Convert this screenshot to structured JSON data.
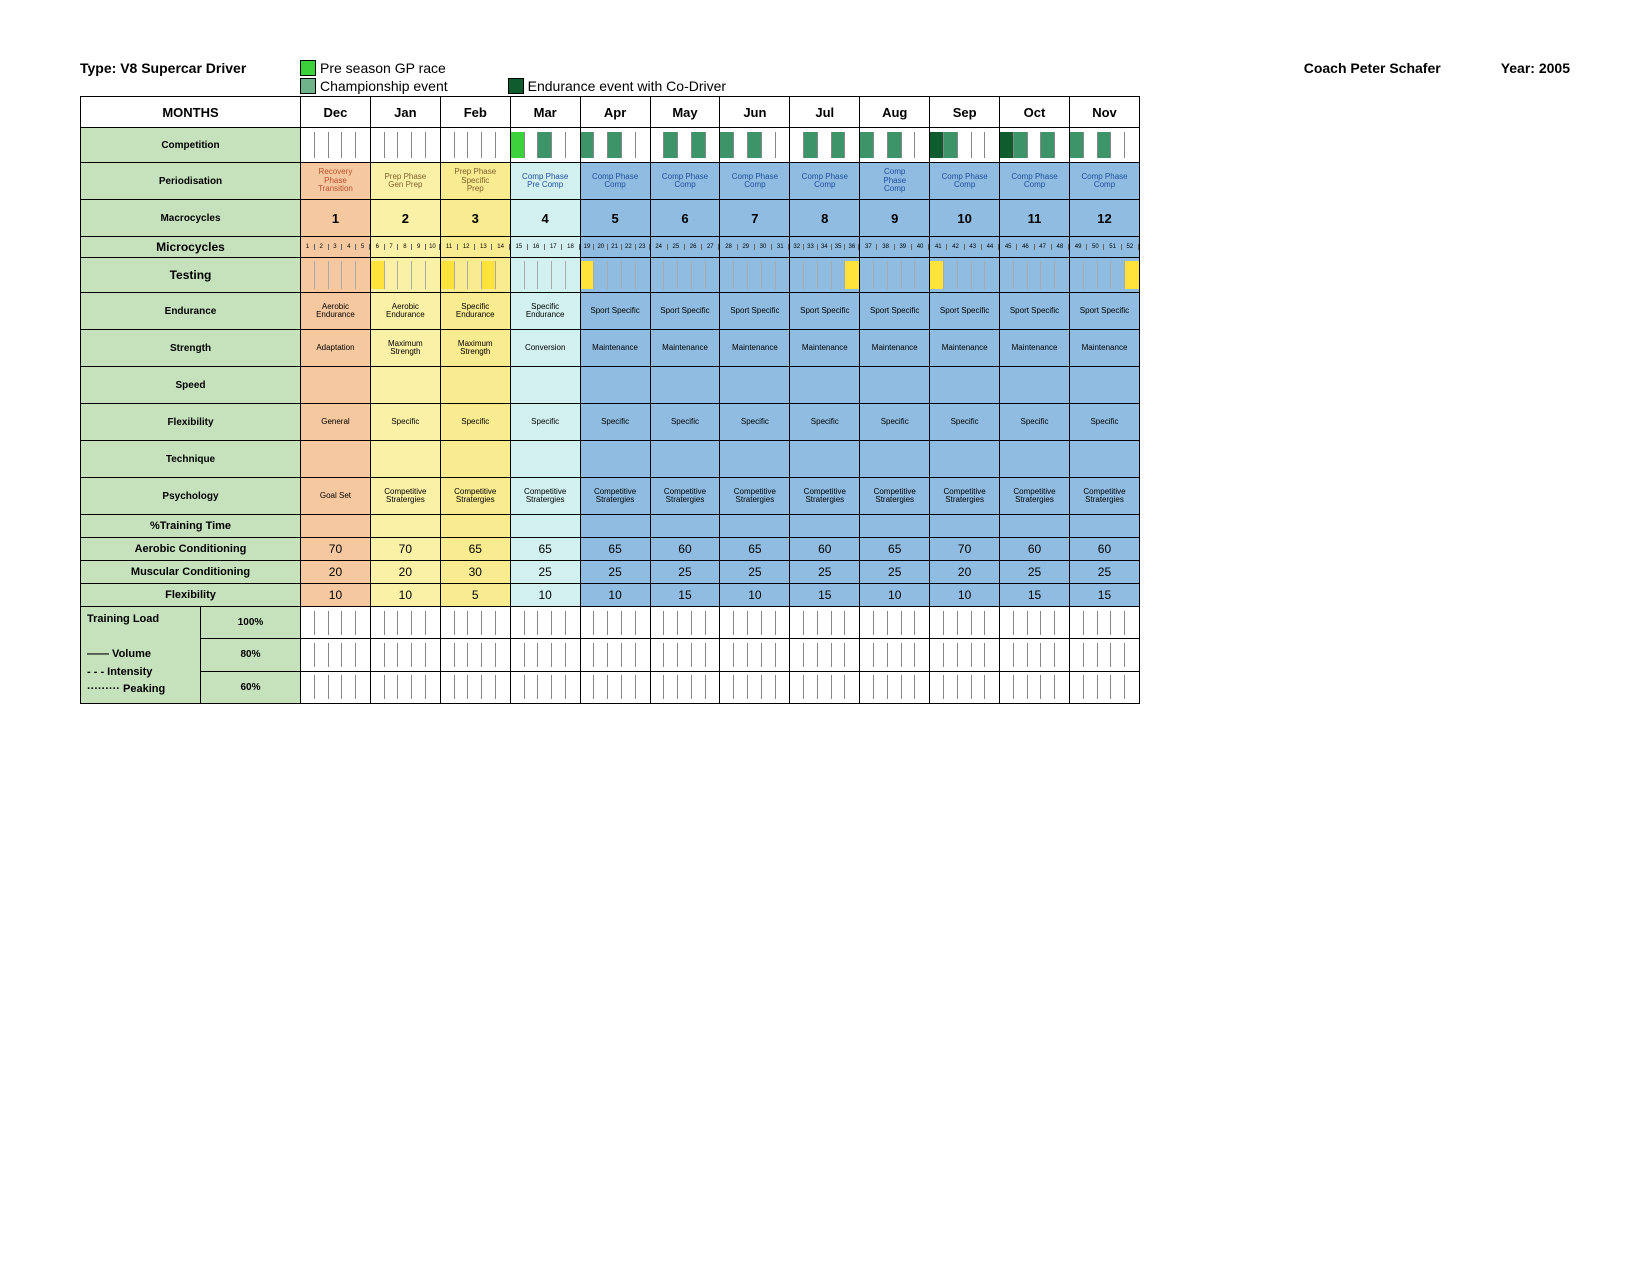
{
  "header": {
    "type_label": "Type:",
    "type_value": "V8 Supercar Driver",
    "coach_label": "Coach",
    "coach_value": "Peter Schafer",
    "year_label": "Year:",
    "year_value": "2005",
    "legend1": {
      "color": "#3bd23b",
      "label": "Pre season GP race"
    },
    "legend2": {
      "color": "#6fb38a",
      "label": "Championship event"
    },
    "legend3": {
      "color": "#0f5d2f",
      "label": "Endurance event with Co-Driver"
    }
  },
  "colors": {
    "label_bg": "#c6e2bd",
    "orange": "#f5c89f",
    "yellow1": "#fbf1a6",
    "yellow2": "#f9eb8f",
    "cyan": "#d1f0ef",
    "blue": "#8fbce0",
    "test_highlight": "#ffe33b",
    "green_event": "#3bd23b",
    "champ_event": "#3d9468",
    "endur_event": "#0f5d2f",
    "white": "#ffffff"
  },
  "row_labels": {
    "months": "MONTHS",
    "competition": "Competition",
    "periodisation": "Periodisation",
    "macro": "Macrocycles",
    "micro": "Microcycles",
    "testing": "Testing",
    "endurance": "Endurance",
    "strength": "Strength",
    "speed": "Speed",
    "flexibility": "Flexibility",
    "technique": "Technique",
    "psychology": "Psychology",
    "pct_time": "%Training Time",
    "aerobic_cond": "Aerobic Conditioning",
    "muscular_cond": "Muscular Conditioning",
    "flex2": "Flexibility",
    "load": "Training Load",
    "volume": "—— Volume",
    "intensity": "- - - Intensity",
    "peaking": "········· Peaking",
    "p100": "100%",
    "p80": "80%",
    "p60": "60%"
  },
  "months": [
    "Dec",
    "Jan",
    "Feb",
    "Mar",
    "Apr",
    "May",
    "Jun",
    "Jul",
    "Aug",
    "Sep",
    "Oct",
    "Nov"
  ],
  "month_blocks": [
    {
      "bg": "orange",
      "period_l1": "Recovery",
      "period_l2": "Phase",
      "period_l3": "Transition",
      "macro": "1",
      "end": "Aerobic Endurance",
      "str": "Adaptation",
      "flex": "General",
      "psy": "Goal Set"
    },
    {
      "bg": "yellow1",
      "period_l1": "Prep Phase",
      "period_l2": "Gen  Prep",
      "period_l3": "",
      "macro": "2",
      "end": "Aerobic Endurance",
      "str": "Maximum Strength",
      "flex": "Specific",
      "psy": "Competitive Stratergies"
    },
    {
      "bg": "yellow2",
      "period_l1": "Prep Phase",
      "period_l2": "Specific",
      "period_l3": "Prep",
      "macro": "3",
      "end": "Specific Endurance",
      "str": "Maximum Strength",
      "flex": "Specific",
      "psy": "Competitive Stratergies"
    },
    {
      "bg": "cyan",
      "period_l1": "Comp Phase",
      "period_l2": "Pre Comp",
      "period_l3": "",
      "macro": "4",
      "end": "Specific Endurance",
      "str": "Conversion",
      "flex": "Specific",
      "psy": "Competitive Stratergies"
    },
    {
      "bg": "blue",
      "period_l1": "Comp Phase",
      "period_l2": "Comp",
      "period_l3": "",
      "macro": "5",
      "end": "Sport Specific",
      "str": "Maintenance",
      "flex": "Specific",
      "psy": "Competitive Stratergies"
    },
    {
      "bg": "blue",
      "period_l1": "Comp Phase",
      "period_l2": "Comp",
      "period_l3": "",
      "macro": "6",
      "end": "Sport Specific",
      "str": "Maintenance",
      "flex": "Specific",
      "psy": "Competitive Stratergies"
    },
    {
      "bg": "blue",
      "period_l1": "Comp Phase",
      "period_l2": "Comp",
      "period_l3": "",
      "macro": "7",
      "end": "Sport Specific",
      "str": "Maintenance",
      "flex": "Specific",
      "psy": "Competitive Stratergies"
    },
    {
      "bg": "blue",
      "period_l1": "Comp Phase",
      "period_l2": "Comp",
      "period_l3": "",
      "macro": "8",
      "end": "Sport Specific",
      "str": "Maintenance",
      "flex": "Specific",
      "psy": "Competitive Stratergies"
    },
    {
      "bg": "blue",
      "period_l1": "Comp",
      "period_l2": "Phase",
      "period_l3": "Comp",
      "macro": "9",
      "end": "Sport Specific",
      "str": "Maintenance",
      "flex": "Specific",
      "psy": "Competitive Stratergies"
    },
    {
      "bg": "blue",
      "period_l1": "Comp Phase",
      "period_l2": "Comp",
      "period_l3": "",
      "macro": "10",
      "end": "Sport Specific",
      "str": "Maintenance",
      "flex": "Specific",
      "psy": "Competitive Stratergies"
    },
    {
      "bg": "blue",
      "period_l1": "Comp Phase",
      "period_l2": "Comp",
      "period_l3": "",
      "macro": "11",
      "end": "Sport Specific",
      "str": "Maintenance",
      "flex": "Specific",
      "psy": "Competitive Stratergies"
    },
    {
      "bg": "blue",
      "period_l1": "Comp Phase",
      "period_l2": "Comp",
      "period_l3": "",
      "macro": "12",
      "end": "Sport Specific",
      "str": "Maintenance",
      "flex": "Specific",
      "psy": "Competitive Stratergies"
    }
  ],
  "competition_events": [
    [],
    [],
    [],
    [
      {
        "slot": 0,
        "type": "green"
      },
      {
        "slot": 2,
        "type": "champ"
      }
    ],
    [
      {
        "slot": 0,
        "type": "champ"
      },
      {
        "slot": 2,
        "type": "champ"
      }
    ],
    [
      {
        "slot": 1,
        "type": "champ"
      },
      {
        "slot": 3,
        "type": "champ"
      }
    ],
    [
      {
        "slot": 0,
        "type": "champ"
      },
      {
        "slot": 2,
        "type": "champ"
      }
    ],
    [
      {
        "slot": 1,
        "type": "champ"
      },
      {
        "slot": 3,
        "type": "champ"
      }
    ],
    [
      {
        "slot": 0,
        "type": "champ"
      },
      {
        "slot": 2,
        "type": "champ"
      }
    ],
    [
      {
        "slot": 0,
        "type": "endur"
      },
      {
        "slot": 1,
        "type": "champ"
      }
    ],
    [
      {
        "slot": 0,
        "type": "endur"
      },
      {
        "slot": 1,
        "type": "champ"
      },
      {
        "slot": 3,
        "type": "champ"
      }
    ],
    [
      {
        "slot": 0,
        "type": "champ"
      },
      {
        "slot": 2,
        "type": "champ"
      }
    ]
  ],
  "testing_highlights": [
    [],
    [
      0
    ],
    [
      0,
      3
    ],
    [],
    [
      0
    ],
    [],
    [],
    [
      4
    ],
    [],
    [
      0
    ],
    [],
    [
      4
    ]
  ],
  "micro_count": 52,
  "micro_per_month": [
    5,
    5,
    4,
    4,
    5,
    4,
    4,
    5,
    4,
    4,
    4,
    4
  ],
  "aerobic": [
    70,
    70,
    65,
    65,
    65,
    60,
    65,
    60,
    65,
    70,
    60,
    60
  ],
  "muscular": [
    20,
    20,
    30,
    25,
    25,
    25,
    25,
    25,
    25,
    20,
    25,
    25
  ],
  "flex_pct": [
    10,
    10,
    5,
    10,
    10,
    15,
    10,
    15,
    10,
    10,
    15,
    15
  ]
}
